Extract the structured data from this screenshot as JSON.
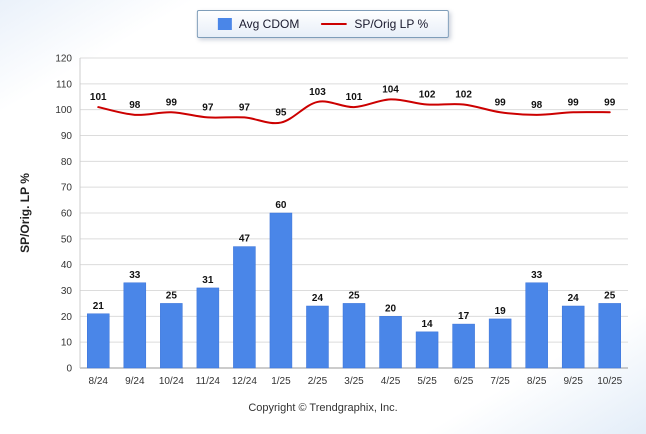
{
  "chart_data": {
    "type": "bar+line",
    "categories": [
      "8/24",
      "9/24",
      "10/24",
      "11/24",
      "12/24",
      "1/25",
      "2/25",
      "3/25",
      "4/25",
      "5/25",
      "6/25",
      "7/25",
      "8/25",
      "9/25",
      "10/25"
    ],
    "series": [
      {
        "name": "Avg CDOM",
        "type": "bar",
        "color": "#4a86e8",
        "values": [
          21,
          33,
          25,
          31,
          47,
          60,
          24,
          25,
          20,
          14,
          17,
          19,
          33,
          24,
          25
        ]
      },
      {
        "name": "SP/Orig LP %",
        "type": "line",
        "color": "#cc0000",
        "values": [
          101,
          98,
          99,
          97,
          97,
          95,
          103,
          101,
          104,
          102,
          102,
          99,
          98,
          99,
          99
        ]
      }
    ],
    "title": "",
    "xlabel": "",
    "ylabel": "SP/Orig. LP %",
    "ylim": [
      0,
      120
    ],
    "ytick_step": 10,
    "grid": true,
    "legend_position": "top-center",
    "value_labels": true
  },
  "legend": {
    "items": [
      {
        "label": "Avg CDOM",
        "color": "#4a86e8",
        "marker": "square"
      },
      {
        "label": "SP/Orig LP %",
        "color": "#cc0000",
        "marker": "line"
      }
    ]
  },
  "footer": {
    "copyright": "Copyright © Trendgraphix, Inc."
  },
  "colors": {
    "bar": "#4a86e8",
    "line": "#cc0000",
    "grid": "#dcdcdc",
    "axis": "#999999",
    "tick_label": "#333333",
    "value_label": "#111111"
  }
}
